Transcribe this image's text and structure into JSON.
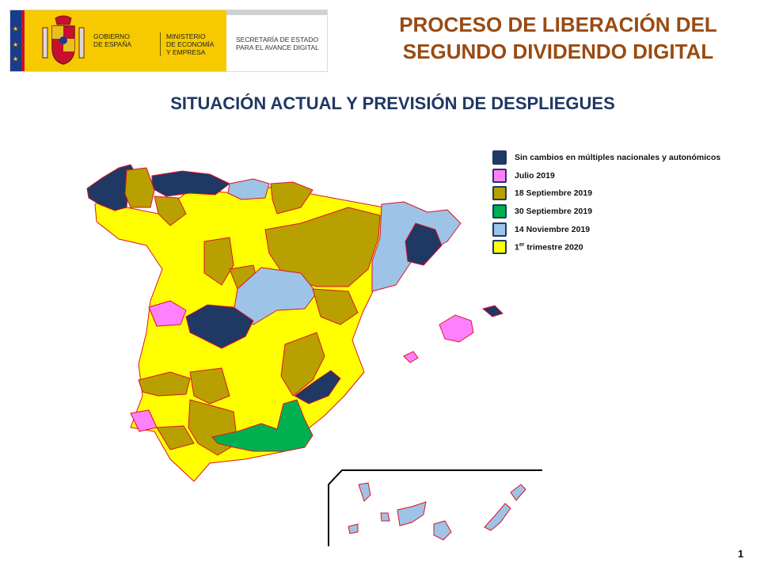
{
  "logo": {
    "gobierno": "GOBIERNO\nDE ESPAÑA",
    "ministerio": "MINISTERIO\nDE ECONOMÍA\nY EMPRESA",
    "secretaria": "SECRETARÍA DE ESTADO\nPARA EL AVANCE DIGITAL"
  },
  "title_line1": "PROCESO DE LIBERACIÓN DEL",
  "title_line2": "SEGUNDO DIVIDENDO DIGITAL",
  "subtitle": "SITUACIÓN ACTUAL Y PREVISIÓN DE DESPLIEGUES",
  "legend": [
    {
      "label": "Sin cambios  en múltiples nacionales  y autonómicos",
      "color": "#1f3864"
    },
    {
      "label": "Julio 2019",
      "color": "#ff80ff"
    },
    {
      "label": "18 Septiembre 2019",
      "color": "#b8a000"
    },
    {
      "label": "30 Septiembre 2019",
      "color": "#00b050"
    },
    {
      "label": "14 Noviembre 2019",
      "color": "#9dc3e6"
    },
    {
      "label_main": "1",
      "label_sup": "er",
      "label_rest": " trimestre 2020",
      "color": "#ffff00"
    }
  ],
  "page_number": "1"
}
